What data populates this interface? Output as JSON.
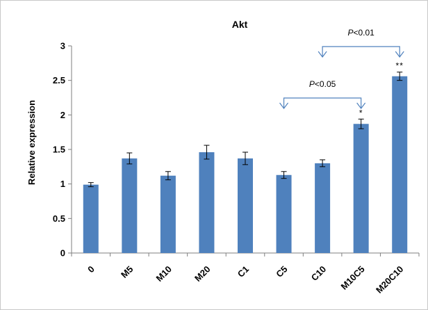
{
  "chart_data": {
    "type": "bar",
    "title": "Akt",
    "ylabel": "Relative expression",
    "xlabel": "",
    "ylim": [
      0,
      3
    ],
    "yticks": [
      "0",
      "0.5",
      "1",
      "1.5",
      "2",
      "2.5",
      "3"
    ],
    "categories": [
      "0",
      "M5",
      "M10",
      "M20",
      "C1",
      "C5",
      "C10",
      "M10C5",
      "M20C10"
    ],
    "values": [
      0.99,
      1.37,
      1.12,
      1.46,
      1.37,
      1.13,
      1.3,
      1.87,
      2.56
    ],
    "errors": [
      0.03,
      0.08,
      0.06,
      0.1,
      0.09,
      0.05,
      0.05,
      0.07,
      0.06
    ],
    "significance": [
      "",
      "",
      "",
      "",
      "",
      "",
      "",
      "*",
      "**"
    ],
    "comparisons": [
      {
        "from": "C5",
        "to": "M10C5",
        "label": "P<0.05"
      },
      {
        "from": "C10",
        "to": "M20C10",
        "label": "P<0.01"
      }
    ],
    "grid": false,
    "legend": "none",
    "bar_color": "#4f81bd",
    "bracket_color": "#4f81bd"
  }
}
